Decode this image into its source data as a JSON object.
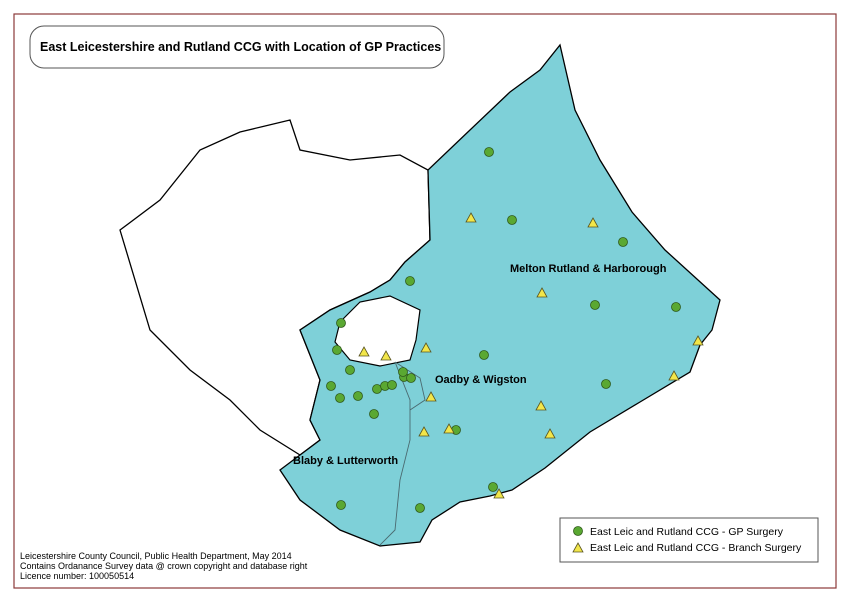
{
  "title": "East Leicestershire and Rutland CCG with Location of GP Practices",
  "regions": [
    "Melton Rutland & Harborough",
    "Oadby & Wigston",
    "Blaby & Lutterworth"
  ],
  "legend": [
    "East Leic and Rutland CCG - GP Surgery",
    "East Leic and Rutland CCG - Branch Surgery"
  ],
  "credits": [
    "Leicestershire County Council, Public Health Department, May 2014",
    "Contains Ordanance Survey data @ crown copyright and database right",
    "Licence number: 100050514"
  ]
}
